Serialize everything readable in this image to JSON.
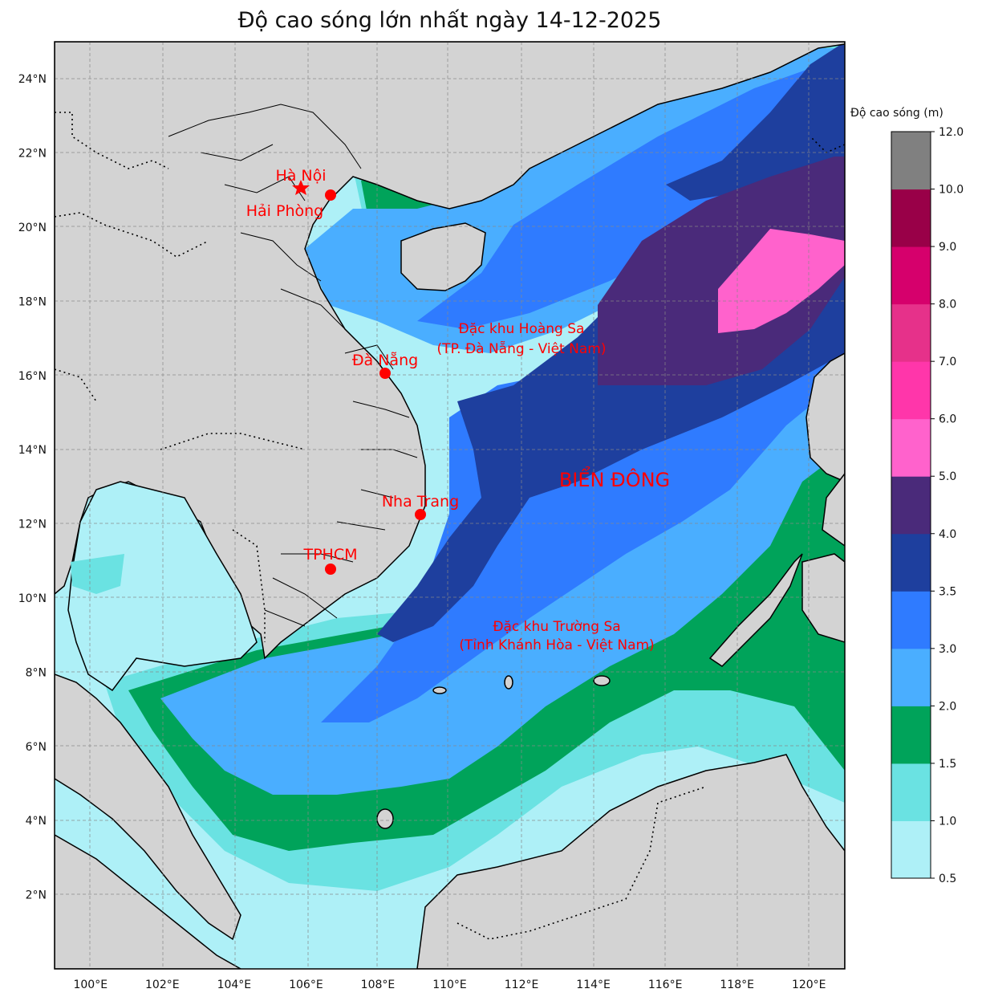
{
  "title": "Độ cao sóng lớn nhất ngày 14-12-2025",
  "colors": {
    "land": "#d3d3d3",
    "marker": "#ff0000"
  },
  "axes": {
    "lon_ticks": [
      "100°E",
      "102°E",
      "104°E",
      "106°E",
      "108°E",
      "110°E",
      "112°E",
      "114°E",
      "116°E",
      "118°E",
      "120°E"
    ],
    "lat_ticks": [
      "2°N",
      "4°N",
      "6°N",
      "8°N",
      "10°N",
      "12°N",
      "14°N",
      "16°N",
      "18°N",
      "20°N",
      "22°N",
      "24°N"
    ],
    "lon_range": [
      99,
      121
    ],
    "lat_range": [
      0,
      25
    ],
    "grid": true
  },
  "labels": {
    "hanoi": "Hà Nội",
    "haiphong": "Hải Phòng",
    "danang": "Đà Nẵng",
    "nhatrang": "Nha Trang",
    "tphcm": "TPHCM",
    "hoangsa_1": "Đặc khu Hoàng Sa",
    "hoangsa_2": "(TP. Đà Nẵng - Việt Nam)",
    "truongsa_1": "Đặc khu Trường Sa",
    "truongsa_2": "(Tỉnh Khánh Hòa - Việt Nam)",
    "sea": "BIỂN ĐÔNG"
  },
  "colorbar": {
    "title": "Độ cao sóng (m)",
    "tick_labels": [
      "0.5",
      "1.0",
      "1.5",
      "2.0",
      "3.0",
      "3.5",
      "4.0",
      "5.0",
      "6.0",
      "7.0",
      "8.0",
      "9.0",
      "10.0",
      "12.0"
    ],
    "colors": [
      "#aef0f7",
      "#6ae2e2",
      "#00a35a",
      "#4aaeff",
      "#2f7bff",
      "#1e3f9e",
      "#4a2a7a",
      "#ff62cc",
      "#ff36aa",
      "#e6318a",
      "#d6006c",
      "#990048",
      "#808080"
    ]
  }
}
